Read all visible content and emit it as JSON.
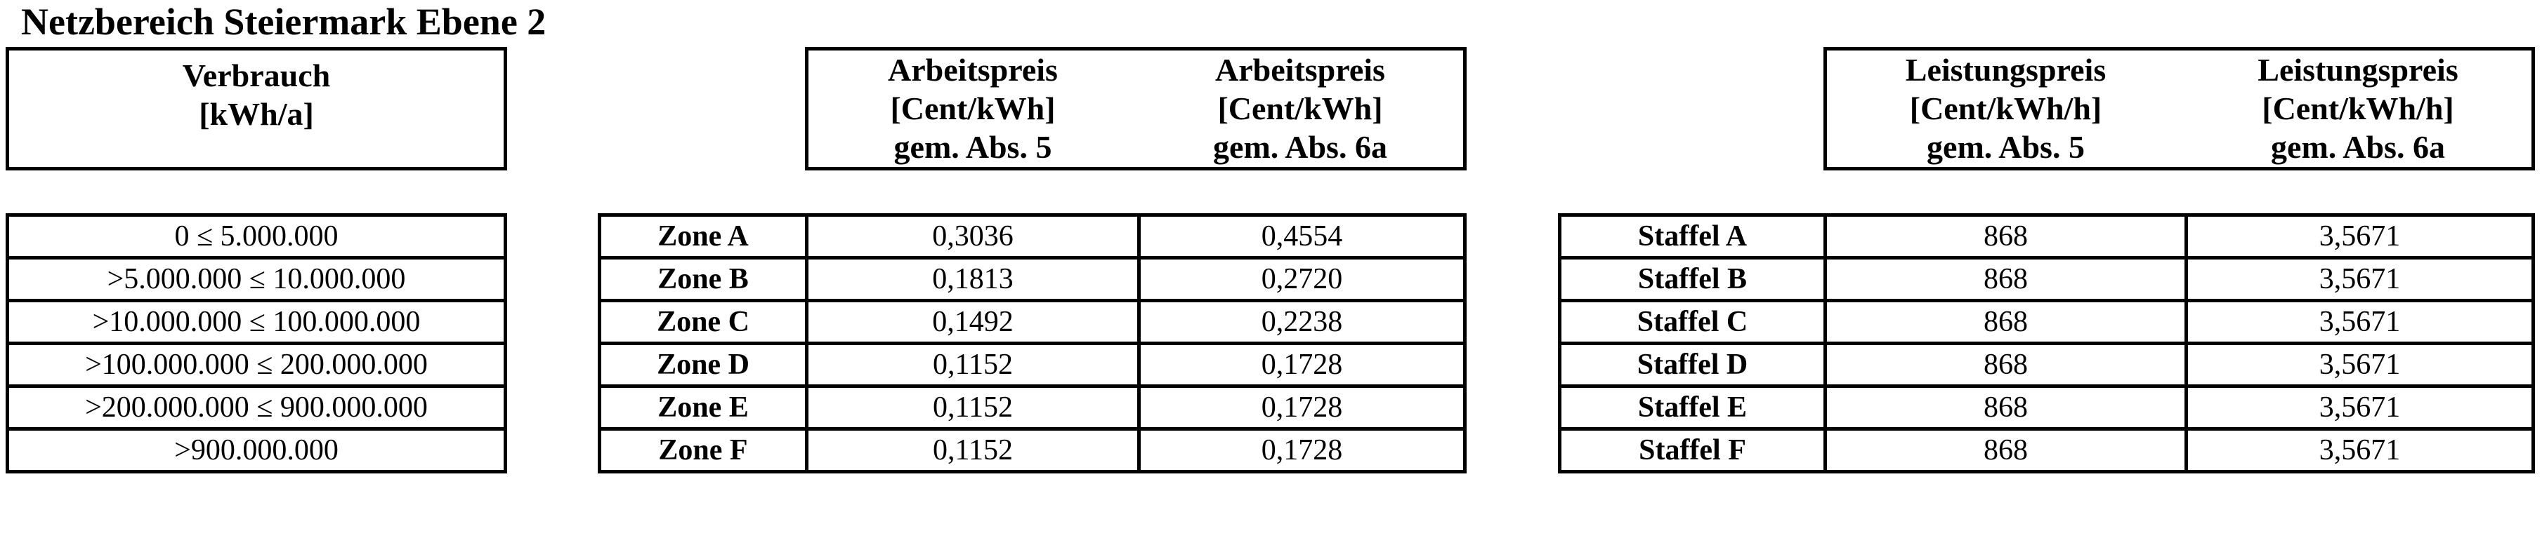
{
  "title": "Netzbereich Steiermark Ebene 2",
  "colors": {
    "text": "#000000",
    "border": "#000000",
    "background": "#ffffff"
  },
  "verbrauch": {
    "header_lines": [
      "Verbrauch",
      "[kWh/a]"
    ],
    "rows": [
      "0 ≤ 5.000.000",
      ">5.000.000 ≤ 10.000.000",
      ">10.000.000 ≤ 100.000.000",
      ">100.000.000 ≤ 200.000.000",
      ">200.000.000 ≤ 900.000.000",
      ">900.000.000"
    ]
  },
  "arbeitspreis": {
    "columns": [
      {
        "lines": [
          "Arbeitspreis",
          "[Cent/kWh]",
          "gem. Abs. 5"
        ]
      },
      {
        "lines": [
          "Arbeitspreis",
          "[Cent/kWh]",
          "gem. Abs. 6a"
        ]
      }
    ],
    "rows": [
      {
        "label": "Zone A",
        "abs5": "0,3036",
        "abs6a": "0,4554"
      },
      {
        "label": "Zone B",
        "abs5": "0,1813",
        "abs6a": "0,2720"
      },
      {
        "label": "Zone C",
        "abs5": "0,1492",
        "abs6a": "0,2238"
      },
      {
        "label": "Zone D",
        "abs5": "0,1152",
        "abs6a": "0,1728"
      },
      {
        "label": "Zone E",
        "abs5": "0,1152",
        "abs6a": "0,1728"
      },
      {
        "label": "Zone F",
        "abs5": "0,1152",
        "abs6a": "0,1728"
      }
    ]
  },
  "leistungspreis": {
    "columns": [
      {
        "lines": [
          "Leistungspreis",
          "[Cent/kWh/h]",
          "gem. Abs. 5"
        ]
      },
      {
        "lines": [
          "Leistungspreis",
          "[Cent/kWh/h]",
          "gem. Abs. 6a"
        ]
      }
    ],
    "rows": [
      {
        "label": "Staffel A",
        "abs5": "868",
        "abs6a": "3,5671"
      },
      {
        "label": "Staffel B",
        "abs5": "868",
        "abs6a": "3,5671"
      },
      {
        "label": "Staffel C",
        "abs5": "868",
        "abs6a": "3,5671"
      },
      {
        "label": "Staffel D",
        "abs5": "868",
        "abs6a": "3,5671"
      },
      {
        "label": "Staffel E",
        "abs5": "868",
        "abs6a": "3,5671"
      },
      {
        "label": "Staffel F",
        "abs5": "868",
        "abs6a": "3,5671"
      }
    ]
  }
}
